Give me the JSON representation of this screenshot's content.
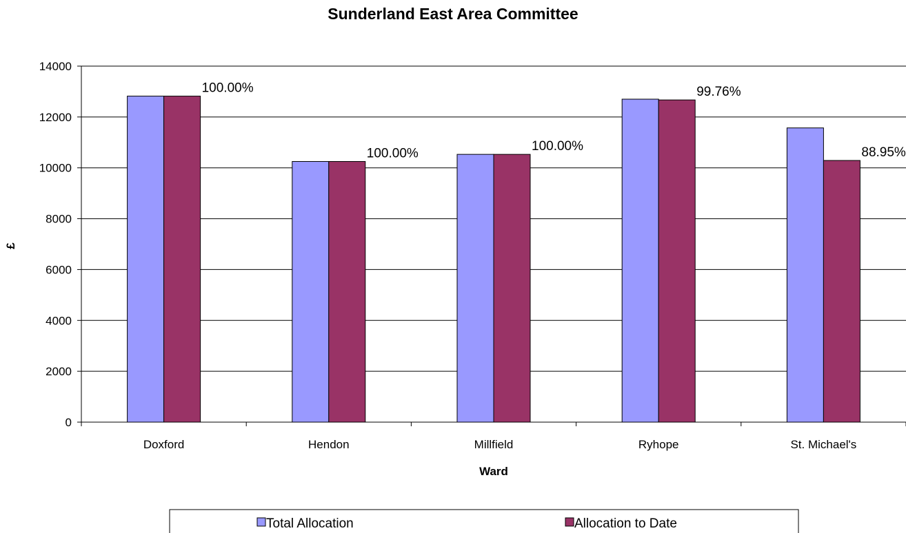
{
  "chart_data": {
    "type": "bar",
    "title": "Sunderland East Area Committee",
    "xlabel": "Ward",
    "ylabel": "£",
    "categories": [
      "Doxford",
      "Hendon",
      "Millfield",
      "Ryhope",
      "St. Michael's"
    ],
    "series": [
      {
        "name": "Total Allocation",
        "color": "#9999ff",
        "values": [
          12820,
          10250,
          10530,
          12700,
          11570
        ]
      },
      {
        "name": "Allocation to Date",
        "color": "#993366",
        "values": [
          12820,
          10250,
          10530,
          12670,
          10290
        ]
      }
    ],
    "data_labels": [
      "100.00%",
      "100.00%",
      "100.00%",
      "99.76%",
      "88.95%"
    ],
    "ylim": [
      0,
      14000
    ],
    "yticks": [
      "0",
      "2000",
      "4000",
      "6000",
      "8000",
      "10000",
      "12000",
      "14000"
    ],
    "grid": true,
    "legend_position": "bottom"
  }
}
